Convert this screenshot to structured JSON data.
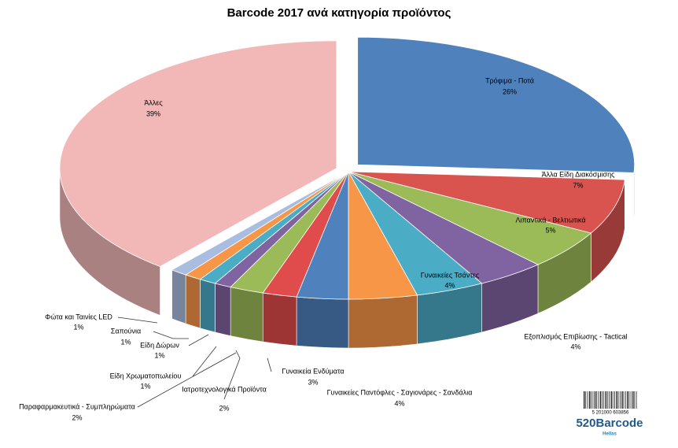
{
  "chart_data": {
    "type": "pie",
    "title": "Barcode 2017 ανά κατηγορία προϊόντος",
    "categories": [
      "Τρόφιμα - Ποτά",
      "Άλλα Είδη Διακόσμισης",
      "Λιπαντικά - Βελτιωτικά",
      "Εξοπλισμός Επιβίωσης - Tactical",
      "Γυναικείες Τσάντες",
      "Γυναικείες Παντόφλες - Σαγιονάρες - Σανδάλια",
      "Γυναικεία Ενδύματα",
      "Ιατροτεχνολογικά Προϊόντα",
      "Παραφαρμακευτικά - Συμπληρώματα",
      "Είδη Χρωματοπωλείου",
      "Είδη Δώρων",
      "Σαπούνια",
      "Φώτα και Ταινίες LED",
      "Άλλες"
    ],
    "values": [
      26,
      7,
      5,
      4,
      4,
      4,
      3,
      2,
      2,
      1,
      1,
      1,
      1,
      39
    ],
    "value_labels": [
      "26%",
      "7%",
      "5%",
      "4%",
      "4%",
      "4%",
      "3%",
      "2%",
      "2%",
      "1%",
      "1%",
      "1%",
      "1%",
      "39%"
    ],
    "colors": [
      "#4f81bd",
      "#d9534f",
      "#9bbb59",
      "#8064a2",
      "#4bacc6",
      "#f79646",
      "#4f81bd",
      "#e04b4b",
      "#9bbb59",
      "#8064a2",
      "#4bacc6",
      "#f79646",
      "#a9bde0",
      "#f2b8b8"
    ]
  },
  "logo": {
    "text": "520Barcode",
    "subtext": "Hellas",
    "barcode_number": "5 201000 603856"
  }
}
